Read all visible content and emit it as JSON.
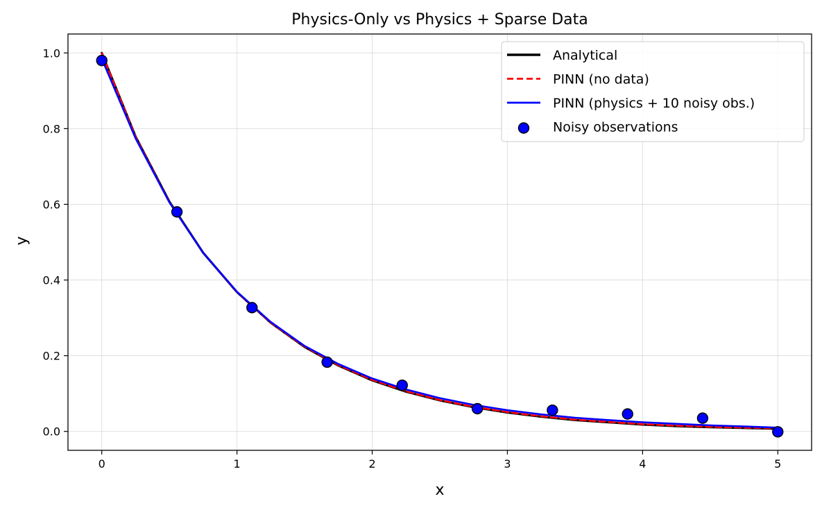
{
  "chart_data": {
    "type": "line",
    "title": "Physics-Only vs Physics + Sparse Data",
    "xlabel": "x",
    "ylabel": "y",
    "xlim": [
      -0.25,
      5.25
    ],
    "ylim": [
      -0.05,
      1.05
    ],
    "xticks": [
      0,
      1,
      2,
      3,
      4,
      5
    ],
    "xtick_labels": [
      "0",
      "1",
      "2",
      "3",
      "4",
      "5"
    ],
    "yticks": [
      0.0,
      0.2,
      0.4,
      0.6,
      0.8,
      1.0
    ],
    "ytick_labels": [
      "0.0",
      "0.2",
      "0.4",
      "0.6",
      "0.8",
      "1.0"
    ],
    "grid": true,
    "legend_position": "top-right",
    "x": [
      0,
      0.25,
      0.5,
      0.75,
      1.0,
      1.25,
      1.5,
      1.75,
      2.0,
      2.25,
      2.5,
      2.75,
      3.0,
      3.25,
      3.5,
      3.75,
      4.0,
      4.25,
      4.5,
      4.75,
      5.0
    ],
    "series": [
      {
        "name": "Analytical",
        "color": "#000000",
        "style": "solid",
        "values": [
          1.0,
          0.779,
          0.607,
          0.472,
          0.368,
          0.287,
          0.223,
          0.174,
          0.135,
          0.105,
          0.082,
          0.064,
          0.05,
          0.039,
          0.03,
          0.024,
          0.018,
          0.014,
          0.011,
          0.009,
          0.007
        ]
      },
      {
        "name": "PINN (no data)",
        "color": "#ff0000",
        "style": "dashed",
        "values": [
          0.999,
          0.778,
          0.606,
          0.472,
          0.368,
          0.287,
          0.224,
          0.175,
          0.136,
          0.106,
          0.083,
          0.065,
          0.051,
          0.04,
          0.031,
          0.025,
          0.019,
          0.015,
          0.012,
          0.01,
          0.008
        ]
      },
      {
        "name": "PINN (physics + 10 noisy obs.)",
        "color": "#0000ff",
        "style": "solid",
        "values": [
          0.985,
          0.774,
          0.605,
          0.472,
          0.369,
          0.289,
          0.226,
          0.178,
          0.14,
          0.111,
          0.088,
          0.07,
          0.056,
          0.045,
          0.036,
          0.03,
          0.024,
          0.02,
          0.016,
          0.013,
          0.01
        ]
      }
    ],
    "scatter": {
      "name": "Noisy observations",
      "color": "#0000ff",
      "edge_color": "#000000",
      "x": [
        0.0,
        0.556,
        1.111,
        1.667,
        2.222,
        2.778,
        3.333,
        3.889,
        4.444,
        5.0
      ],
      "y": [
        0.98,
        0.58,
        0.327,
        0.183,
        0.122,
        0.06,
        0.056,
        0.046,
        0.035,
        -0.001
      ]
    }
  }
}
